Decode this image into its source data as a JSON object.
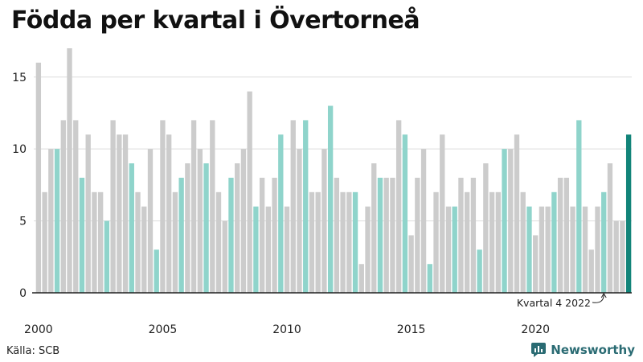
{
  "title": "Födda per kvartal i Övertorneå",
  "source": "Källa: SCB",
  "brand": "Newsworthy",
  "annotation": "Kvartal 4 2022",
  "colors": {
    "grey": "#cccccc",
    "q4": "#8fd4cb",
    "last": "#128479",
    "axis": "#222222",
    "grid": "#dddddd"
  },
  "chart_data": {
    "type": "bar",
    "title": "Födda per kvartal i Övertorneå",
    "ylim": [
      0,
      17
    ],
    "yticks": [
      0,
      5,
      10,
      15
    ],
    "xtick_labels": [
      "2000",
      "2005",
      "2010",
      "2015",
      "2020"
    ],
    "grid": true,
    "series": [
      {
        "values": [
          16,
          7,
          10,
          10,
          12,
          17,
          12,
          8,
          11,
          7,
          7,
          5,
          12,
          11,
          11,
          9,
          7,
          6,
          10,
          3,
          12,
          11,
          7,
          8,
          9,
          12,
          10,
          9,
          12,
          7,
          5,
          8,
          9,
          10,
          14,
          6,
          8,
          6,
          8,
          11,
          6,
          12,
          10,
          12,
          7,
          7,
          10,
          13,
          8,
          7,
          7,
          7,
          2,
          6,
          9,
          8,
          8,
          8,
          12,
          11,
          4,
          8,
          10,
          2,
          7,
          11,
          6,
          6,
          8,
          7,
          8,
          3,
          9,
          7,
          7,
          10,
          10,
          11,
          7,
          6,
          4,
          6,
          6,
          7,
          8,
          8,
          6,
          12,
          6,
          3,
          6,
          7,
          9,
          5,
          5,
          11
        ]
      }
    ]
  }
}
